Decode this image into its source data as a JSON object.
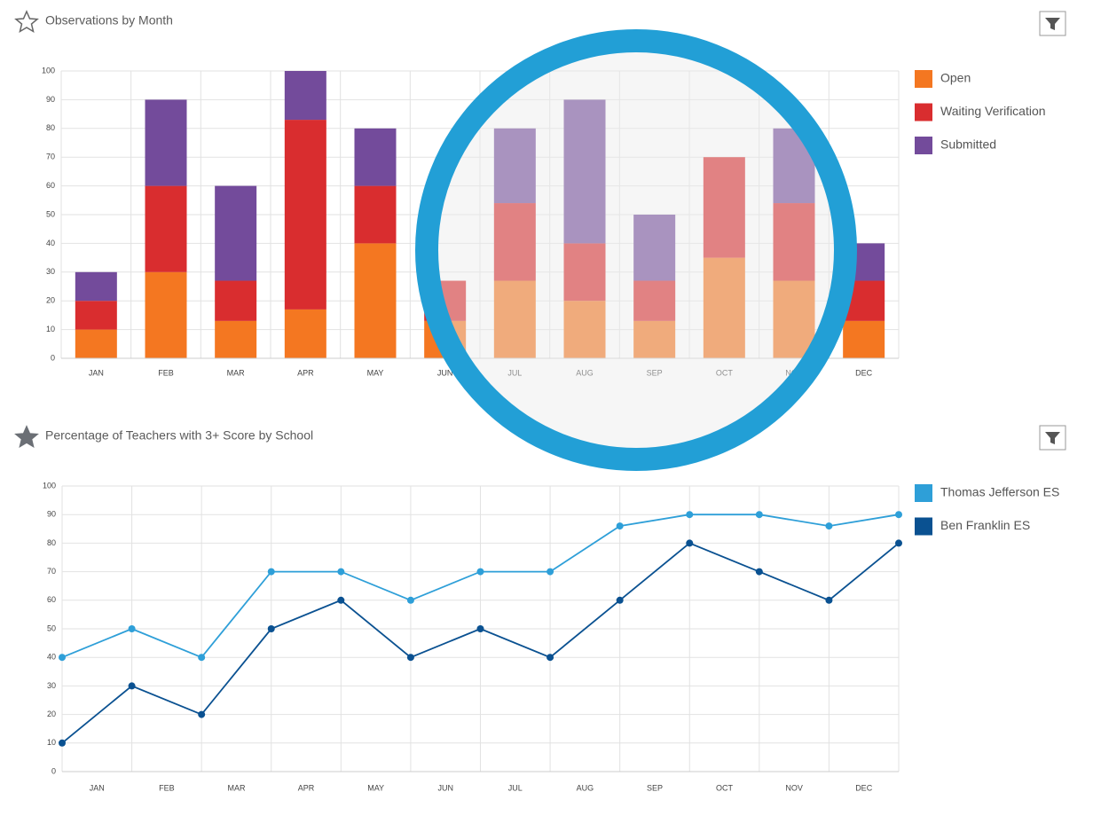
{
  "chart_data": [
    {
      "type": "bar",
      "stacked": true,
      "title": "Observations by Month",
      "categories": [
        "JAN",
        "FEB",
        "MAR",
        "APR",
        "MAY",
        "JUN",
        "JUL",
        "AUG",
        "SEP",
        "OCT",
        "NOV",
        "DEC"
      ],
      "series": [
        {
          "name": "Open",
          "color": "#f47721",
          "values": [
            10,
            30,
            13,
            17,
            40,
            13,
            27,
            20,
            13,
            35,
            27,
            13
          ]
        },
        {
          "name": "Waiting Verification",
          "color": "#d92d2f",
          "values": [
            10,
            30,
            14,
            66,
            20,
            14,
            27,
            20,
            14,
            35,
            27,
            14
          ]
        },
        {
          "name": "Submitted",
          "color": "#734b9b",
          "values": [
            10,
            30,
            33,
            17,
            20,
            0,
            26,
            50,
            23,
            0,
            26,
            13
          ]
        }
      ],
      "ylim": [
        0,
        100
      ],
      "yticks": [
        0,
        10,
        20,
        30,
        40,
        50,
        60,
        70,
        80,
        90,
        100
      ],
      "grid": true,
      "legend": "right"
    },
    {
      "type": "line",
      "title": "Percentage of Teachers with 3+ Score by School",
      "categories": [
        "JAN",
        "FEB",
        "MAR",
        "APR",
        "MAY",
        "JUN",
        "JUL",
        "AUG",
        "SEP",
        "OCT",
        "NOV",
        "DEC",
        null
      ],
      "series": [
        {
          "name": "Thomas Jefferson ES",
          "color": "#2e9fd8",
          "values": [
            40,
            50,
            40,
            70,
            70,
            60,
            70,
            70,
            86,
            90,
            90,
            86,
            90
          ]
        },
        {
          "name": "Ben Franklin ES",
          "color": "#0a5191",
          "values": [
            10,
            30,
            20,
            50,
            60,
            40,
            50,
            40,
            60,
            80,
            70,
            60,
            80
          ]
        }
      ],
      "ylim": [
        0,
        100
      ],
      "yticks": [
        0,
        10,
        20,
        30,
        40,
        50,
        60,
        70,
        80,
        90,
        100
      ],
      "grid": true,
      "legend": "right"
    }
  ]
}
